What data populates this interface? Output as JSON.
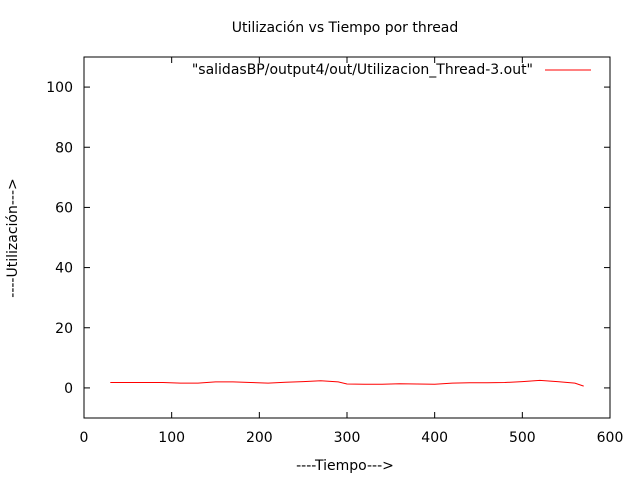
{
  "chart_data": {
    "type": "line",
    "title": "Utilización vs Tiempo por thread",
    "xlabel": "----Tiempo--->",
    "ylabel": "----Utilización--->",
    "xlim": [
      0,
      600
    ],
    "ylim": [
      -10,
      110
    ],
    "xticks": [
      0,
      100,
      200,
      300,
      400,
      500,
      600
    ],
    "yticks": [
      0,
      20,
      40,
      60,
      80,
      100
    ],
    "grid": false,
    "legend_position": "top-right",
    "series": [
      {
        "name": "\"salidasBP/output4/out/Utilizacion_Thread-3.out\"",
        "color": "#ff0000",
        "x": [
          30,
          60,
          90,
          110,
          130,
          150,
          170,
          190,
          210,
          230,
          250,
          270,
          290,
          300,
          320,
          340,
          360,
          380,
          400,
          420,
          440,
          460,
          480,
          500,
          520,
          540,
          560,
          570
        ],
        "y": [
          1.8,
          1.8,
          1.8,
          1.6,
          1.6,
          2.0,
          2.0,
          1.8,
          1.6,
          1.9,
          2.1,
          2.4,
          2.0,
          1.3,
          1.2,
          1.2,
          1.4,
          1.3,
          1.2,
          1.6,
          1.7,
          1.7,
          1.8,
          2.1,
          2.5,
          2.1,
          1.6,
          0.6
        ]
      }
    ]
  }
}
